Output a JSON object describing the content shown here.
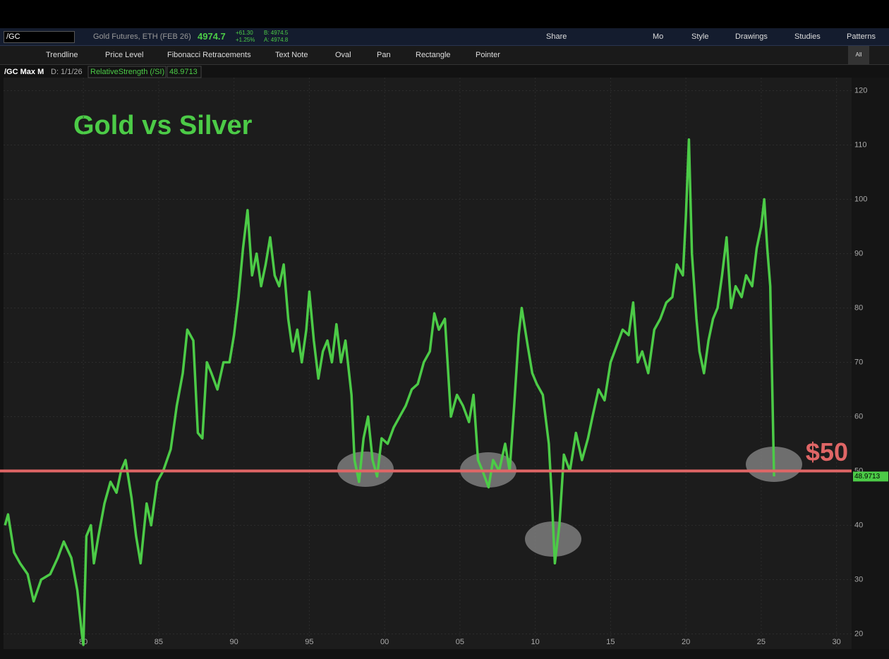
{
  "toolbar": {
    "symbol": "/GC",
    "description": "Gold Futures, ETH (FEB 26)",
    "last": "4974.7",
    "change": "+61.30",
    "change_pct": "+1.25%",
    "bid": "B: 4974.5",
    "ask": "A: 4974.8",
    "buttons": [
      "Share",
      "Mo",
      "Style",
      "Drawings",
      "Studies",
      "Patterns"
    ]
  },
  "drawing_tools": [
    "Trendline",
    "Price Level",
    "Fibonacci Retracements",
    "Text Note",
    "Oval",
    "Pan",
    "Rectangle",
    "Pointer",
    "All"
  ],
  "chart_header": {
    "symbol": "/GC Max M",
    "date": "D: 1/1/26"
  },
  "chart_data": {
    "type": "line",
    "title": "Gold vs Silver",
    "x": [
      1974.8,
      1975,
      1975.4,
      1975.8,
      1976.3,
      1976.7,
      1977.2,
      1977.8,
      1978.3,
      1978.7,
      1979.2,
      1979.6,
      1979.9,
      1980.0,
      1980.2,
      1980.5,
      1980.7,
      1981.0,
      1981.4,
      1981.8,
      1982.2,
      1982.5,
      1982.8,
      1983.2,
      1983.5,
      1983.8,
      1984.2,
      1984.5,
      1984.9,
      1985.3,
      1985.8,
      1986.2,
      1986.6,
      1986.9,
      1987.3,
      1987.6,
      1987.9,
      1988.2,
      1988.5,
      1988.9,
      1989.3,
      1989.7,
      1990.0,
      1990.3,
      1990.6,
      1990.9,
      1991.2,
      1991.5,
      1991.8,
      1992.1,
      1992.4,
      1992.7,
      1993.0,
      1993.3,
      1993.6,
      1993.9,
      1994.2,
      1994.5,
      1994.8,
      1995.0,
      1995.3,
      1995.6,
      1995.9,
      1996.2,
      1996.5,
      1996.8,
      1997.1,
      1997.4,
      1997.8,
      1998.0,
      1998.3,
      1998.6,
      1998.9,
      1999.2,
      1999.5,
      1999.8,
      2000.2,
      2000.6,
      2001.0,
      2001.4,
      2001.8,
      2002.2,
      2002.6,
      2003.0,
      2003.3,
      2003.6,
      2004.0,
      2004.4,
      2004.8,
      2005.2,
      2005.6,
      2005.9,
      2006.2,
      2006.5,
      2006.9,
      2007.2,
      2007.6,
      2008.0,
      2008.3,
      2008.6,
      2008.9,
      2009.1,
      2009.5,
      2009.8,
      2010.1,
      2010.5,
      2010.9,
      2011.1,
      2011.3,
      2011.6,
      2011.9,
      2012.3,
      2012.7,
      2013.1,
      2013.5,
      2013.8,
      2014.2,
      2014.6,
      2015.0,
      2015.4,
      2015.8,
      2016.2,
      2016.5,
      2016.8,
      2017.1,
      2017.5,
      2017.9,
      2018.3,
      2018.7,
      2019.1,
      2019.4,
      2019.8,
      2020.0,
      2020.2,
      2020.4,
      2020.7,
      2020.9,
      2021.2,
      2021.5,
      2021.8,
      2022.1,
      2022.4,
      2022.7,
      2023.0,
      2023.3,
      2023.7,
      2024.0,
      2024.4,
      2024.7,
      2025.0,
      2025.2,
      2025.4,
      2025.6,
      2025.85
    ],
    "series": [
      {
        "name": "RelativeStrength (/SI)",
        "color": "#4ccb47",
        "values": [
          40,
          42,
          35,
          33,
          31,
          26,
          30,
          31,
          34,
          37,
          34,
          28,
          20,
          18,
          38,
          40,
          33,
          38,
          44,
          48,
          46,
          50,
          52,
          45,
          38,
          33,
          44,
          40,
          48,
          50,
          54,
          62,
          68,
          76,
          74,
          57,
          56,
          70,
          68,
          65,
          70,
          70,
          75,
          82,
          91,
          98,
          86,
          90,
          84,
          88,
          93,
          86,
          84,
          88,
          78,
          72,
          76,
          70,
          76,
          83,
          74,
          67,
          72,
          74,
          70,
          77,
          70,
          74,
          64,
          52,
          48,
          56,
          60,
          52,
          49,
          56,
          55,
          58,
          60,
          62,
          65,
          66,
          70,
          72,
          79,
          76,
          78,
          60,
          64,
          62,
          59,
          64,
          52,
          50,
          47,
          52,
          50,
          55,
          50,
          62,
          75,
          80,
          73,
          68,
          66,
          64,
          55,
          45,
          33,
          40,
          53,
          50,
          57,
          52,
          56,
          60,
          65,
          63,
          70,
          73,
          76,
          75,
          81,
          70,
          72,
          68,
          76,
          78,
          81,
          82,
          88,
          86,
          97,
          111,
          90,
          78,
          72,
          68,
          74,
          78,
          80,
          86,
          93,
          80,
          84,
          82,
          86,
          84,
          91,
          95,
          100,
          91,
          84,
          49
        ]
      }
    ],
    "last_value": 48.9713,
    "hline": {
      "value": 50,
      "label": "$50",
      "color": "#e06666"
    },
    "xlim": [
      1974.7,
      2031
    ],
    "ylim": [
      17.2,
      122.4
    ],
    "xticks": [
      {
        "value": 1980,
        "label": "80"
      },
      {
        "value": 1985,
        "label": "85"
      },
      {
        "value": 1990,
        "label": "90"
      },
      {
        "value": 1995,
        "label": "95"
      },
      {
        "value": 2000,
        "label": "00"
      },
      {
        "value": 2005,
        "label": "05"
      },
      {
        "value": 2010,
        "label": "10"
      },
      {
        "value": 2015,
        "label": "15"
      },
      {
        "value": 2020,
        "label": "20"
      },
      {
        "value": 2025,
        "label": "25"
      },
      {
        "value": 2030,
        "label": "30"
      }
    ],
    "yticks": [
      20,
      30,
      40,
      50,
      60,
      70,
      80,
      90,
      100,
      110,
      120
    ],
    "grid": true
  }
}
